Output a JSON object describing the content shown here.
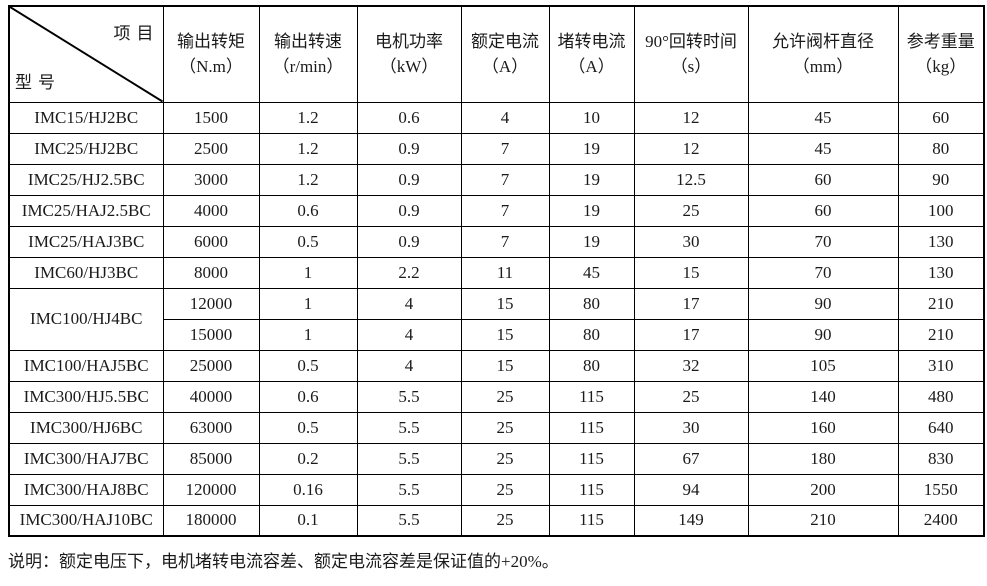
{
  "page": {
    "background": "#ffffff",
    "text_color": "#1a1a1a",
    "border_color": "#000000"
  },
  "table": {
    "corner": {
      "top_right": "项目",
      "bottom_left": "型号"
    },
    "columns": [
      {
        "label": "输出转矩",
        "unit": "（N.m）"
      },
      {
        "label": "输出转速",
        "unit": "（r/min）"
      },
      {
        "label": "电机功率",
        "unit": "（kW）"
      },
      {
        "label": "额定电流",
        "unit": "（A）"
      },
      {
        "label": "堵转电流",
        "unit": "（A）"
      },
      {
        "label": "90°回转时间",
        "unit": "（s）"
      },
      {
        "label": "允许阀杆直径",
        "unit": "（mm）"
      },
      {
        "label": "参考重量",
        "unit": "（kg）"
      }
    ],
    "rows": [
      {
        "model": "IMC15/HJ2BC",
        "rowspan": 1,
        "values": [
          "1500",
          "1.2",
          "0.6",
          "4",
          "10",
          "12",
          "45",
          "60"
        ]
      },
      {
        "model": "IMC25/HJ2BC",
        "rowspan": 1,
        "values": [
          "2500",
          "1.2",
          "0.9",
          "7",
          "19",
          "12",
          "45",
          "80"
        ]
      },
      {
        "model": "IMC25/HJ2.5BC",
        "rowspan": 1,
        "values": [
          "3000",
          "1.2",
          "0.9",
          "7",
          "19",
          "12.5",
          "60",
          "90"
        ]
      },
      {
        "model": "IMC25/HAJ2.5BC",
        "rowspan": 1,
        "values": [
          "4000",
          "0.6",
          "0.9",
          "7",
          "19",
          "25",
          "60",
          "100"
        ]
      },
      {
        "model": "IMC25/HAJ3BC",
        "rowspan": 1,
        "values": [
          "6000",
          "0.5",
          "0.9",
          "7",
          "19",
          "30",
          "70",
          "130"
        ]
      },
      {
        "model": "IMC60/HJ3BC",
        "rowspan": 1,
        "values": [
          "8000",
          "1",
          "2.2",
          "11",
          "45",
          "15",
          "70",
          "130"
        ]
      },
      {
        "model": "IMC100/HJ4BC",
        "rowspan": 2,
        "values": [
          "12000",
          "1",
          "4",
          "15",
          "80",
          "17",
          "90",
          "210"
        ]
      },
      {
        "model": null,
        "rowspan": 0,
        "values": [
          "15000",
          "1",
          "4",
          "15",
          "80",
          "17",
          "90",
          "210"
        ]
      },
      {
        "model": "IMC100/HAJ5BC",
        "rowspan": 1,
        "values": [
          "25000",
          "0.5",
          "4",
          "15",
          "80",
          "32",
          "105",
          "310"
        ]
      },
      {
        "model": "IMC300/HJ5.5BC",
        "rowspan": 1,
        "values": [
          "40000",
          "0.6",
          "5.5",
          "25",
          "115",
          "25",
          "140",
          "480"
        ]
      },
      {
        "model": "IMC300/HJ6BC",
        "rowspan": 1,
        "values": [
          "63000",
          "0.5",
          "5.5",
          "25",
          "115",
          "30",
          "160",
          "640"
        ]
      },
      {
        "model": "IMC300/HAJ7BC",
        "rowspan": 1,
        "values": [
          "85000",
          "0.2",
          "5.5",
          "25",
          "115",
          "67",
          "180",
          "830"
        ]
      },
      {
        "model": "IMC300/HAJ8BC",
        "rowspan": 1,
        "values": [
          "120000",
          "0.16",
          "5.5",
          "25",
          "115",
          "94",
          "200",
          "1550"
        ]
      },
      {
        "model": "IMC300/HAJ10BC",
        "rowspan": 1,
        "values": [
          "180000",
          "0.1",
          "5.5",
          "25",
          "115",
          "149",
          "210",
          "2400"
        ]
      }
    ],
    "note": "说明：额定电压下，电机堵转电流容差、额定电流容差是保证值的+20%。"
  }
}
